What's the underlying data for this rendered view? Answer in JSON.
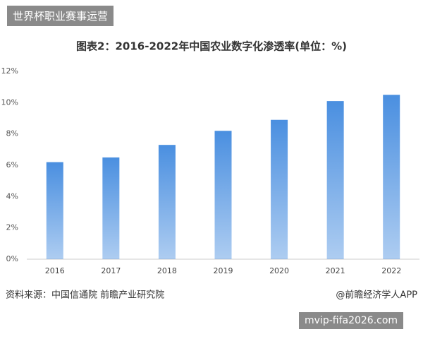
{
  "header": {
    "badge": "世界杯职业赛事运营"
  },
  "chart_data": {
    "type": "bar",
    "title": "图表2：2016-2022年中国农业数字化渗透率(单位：%)",
    "categories": [
      "2016",
      "2017",
      "2018",
      "2019",
      "2020",
      "2021",
      "2022"
    ],
    "values": [
      6.2,
      6.5,
      7.3,
      8.2,
      8.9,
      10.1,
      10.5
    ],
    "color": "#4a8fe0",
    "ylim": [
      0,
      12
    ],
    "yticks": [
      {
        "value": 0,
        "label": "0%"
      },
      {
        "value": 2,
        "label": "2%"
      },
      {
        "value": 4,
        "label": "4%"
      },
      {
        "value": 6,
        "label": "6%"
      },
      {
        "value": 8,
        "label": "8%"
      },
      {
        "value": 10,
        "label": "10%"
      },
      {
        "value": 12,
        "label": "12%"
      }
    ],
    "grid": false
  },
  "footer": {
    "source": "资料来源：中国信通院 前瞻产业研究院",
    "credit": "@前瞻经济学人APP",
    "watermark": "mvip-fifa2026.com"
  }
}
